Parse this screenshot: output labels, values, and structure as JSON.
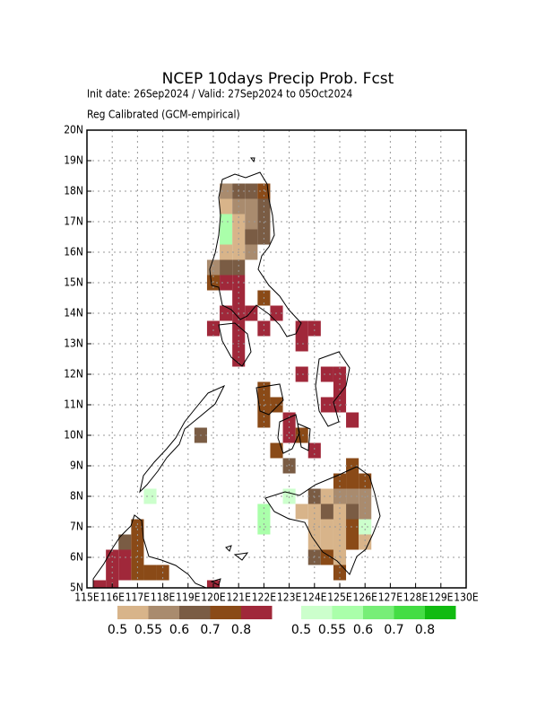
{
  "map": {
    "title": "NCEP  10days  Precip  Prob.  Fcst",
    "subtitle1": "Init date: 26Sep2024 / Valid: 27Sep2024 to 05Oct2024",
    "subtitle2": "Reg Calibrated (GCM-empirical)",
    "xlim": [
      115,
      130
    ],
    "ylim": [
      5,
      20
    ],
    "xticks": [
      {
        "value": 115,
        "label": "115E"
      },
      {
        "value": 116,
        "label": "116E"
      },
      {
        "value": 117,
        "label": "117E"
      },
      {
        "value": 118,
        "label": "118E"
      },
      {
        "value": 119,
        "label": "119E"
      },
      {
        "value": 120,
        "label": "120E"
      },
      {
        "value": 121,
        "label": "121E"
      },
      {
        "value": 122,
        "label": "122E"
      },
      {
        "value": 123,
        "label": "123E"
      },
      {
        "value": 124,
        "label": "124E"
      },
      {
        "value": 125,
        "label": "125E"
      },
      {
        "value": 126,
        "label": "126E"
      },
      {
        "value": 127,
        "label": "127E"
      },
      {
        "value": 128,
        "label": "128E"
      },
      {
        "value": 129,
        "label": "129E"
      },
      {
        "value": 130,
        "label": "130E"
      }
    ],
    "yticks": [
      {
        "value": 5,
        "label": "5N"
      },
      {
        "value": 6,
        "label": "6N"
      },
      {
        "value": 7,
        "label": "7N"
      },
      {
        "value": 8,
        "label": "8N"
      },
      {
        "value": 9,
        "label": "9N"
      },
      {
        "value": 10,
        "label": "10N"
      },
      {
        "value": 11,
        "label": "11N"
      },
      {
        "value": 12,
        "label": "12N"
      },
      {
        "value": 13,
        "label": "13N"
      },
      {
        "value": 14,
        "label": "14N"
      },
      {
        "value": 15,
        "label": "15N"
      },
      {
        "value": 16,
        "label": "16N"
      },
      {
        "value": 17,
        "label": "17N"
      },
      {
        "value": 18,
        "label": "18N"
      },
      {
        "value": 19,
        "label": "19N"
      },
      {
        "value": 20,
        "label": "20N"
      }
    ],
    "grid": true,
    "cell_size": 0.5,
    "legends": [
      {
        "colors": [
          "#d8b48a",
          "#a98b6e",
          "#7a5c44",
          "#8a4a17",
          "#a0283a"
        ],
        "labels": [
          "0.5",
          "0.55",
          "0.6",
          "0.7",
          "0.8"
        ]
      },
      {
        "colors": [
          "#ccffcc",
          "#aaffaa",
          "#77ee77",
          "#44dd44",
          "#11bb11"
        ],
        "labels": [
          "0.5",
          "0.55",
          "0.6",
          "0.7",
          "0.8"
        ]
      }
    ],
    "cells": [
      {
        "lon": 120.5,
        "lat": 18,
        "color": "#a98b6e"
      },
      {
        "lon": 121,
        "lat": 18,
        "color": "#7a5c44"
      },
      {
        "lon": 121.5,
        "lat": 18,
        "color": "#7a5c44"
      },
      {
        "lon": 122,
        "lat": 18,
        "color": "#8a4a17"
      },
      {
        "lon": 120.5,
        "lat": 17.5,
        "color": "#d8b48a"
      },
      {
        "lon": 121,
        "lat": 17.5,
        "color": "#a98b6e"
      },
      {
        "lon": 121.5,
        "lat": 17.5,
        "color": "#a98b6e"
      },
      {
        "lon": 122,
        "lat": 17.5,
        "color": "#7a5c44"
      },
      {
        "lon": 120.5,
        "lat": 17,
        "color": "#aaffaa"
      },
      {
        "lon": 121,
        "lat": 17,
        "color": "#d8b48a"
      },
      {
        "lon": 121.5,
        "lat": 17,
        "color": "#a98b6e"
      },
      {
        "lon": 122,
        "lat": 17,
        "color": "#7a5c44"
      },
      {
        "lon": 120.5,
        "lat": 16.5,
        "color": "#aaffaa"
      },
      {
        "lon": 121,
        "lat": 16.5,
        "color": "#d8b48a"
      },
      {
        "lon": 121.5,
        "lat": 16.5,
        "color": "#7a5c44"
      },
      {
        "lon": 122,
        "lat": 16.5,
        "color": "#7a5c44"
      },
      {
        "lon": 120.5,
        "lat": 16,
        "color": "#d8b48a"
      },
      {
        "lon": 121,
        "lat": 16,
        "color": "#d8b48a"
      },
      {
        "lon": 121.5,
        "lat": 16,
        "color": "#a98b6e"
      },
      {
        "lon": 120,
        "lat": 15.5,
        "color": "#a98b6e"
      },
      {
        "lon": 120.5,
        "lat": 15.5,
        "color": "#7a5c44"
      },
      {
        "lon": 121,
        "lat": 15.5,
        "color": "#7a5c44"
      },
      {
        "lon": 120,
        "lat": 15,
        "color": "#8a4a17"
      },
      {
        "lon": 120.5,
        "lat": 15,
        "color": "#a0283a"
      },
      {
        "lon": 121,
        "lat": 15,
        "color": "#a0283a"
      },
      {
        "lon": 121,
        "lat": 14.5,
        "color": "#a0283a"
      },
      {
        "lon": 122,
        "lat": 14.5,
        "color": "#8a4a17"
      },
      {
        "lon": 120.5,
        "lat": 14,
        "color": "#a0283a"
      },
      {
        "lon": 121,
        "lat": 14,
        "color": "#a0283a"
      },
      {
        "lon": 121.5,
        "lat": 14,
        "color": "#a0283a"
      },
      {
        "lon": 122.5,
        "lat": 14,
        "color": "#a0283a"
      },
      {
        "lon": 120,
        "lat": 13.5,
        "color": "#a0283a"
      },
      {
        "lon": 121,
        "lat": 13.5,
        "color": "#a0283a"
      },
      {
        "lon": 122,
        "lat": 13.5,
        "color": "#a0283a"
      },
      {
        "lon": 123.5,
        "lat": 13.5,
        "color": "#a0283a"
      },
      {
        "lon": 124,
        "lat": 13.5,
        "color": "#a0283a"
      },
      {
        "lon": 121,
        "lat": 13,
        "color": "#a0283a"
      },
      {
        "lon": 123.5,
        "lat": 13,
        "color": "#a0283a"
      },
      {
        "lon": 121,
        "lat": 12.5,
        "color": "#a0283a"
      },
      {
        "lon": 123.5,
        "lat": 12,
        "color": "#a0283a"
      },
      {
        "lon": 124.5,
        "lat": 12,
        "color": "#a0283a"
      },
      {
        "lon": 125,
        "lat": 12,
        "color": "#a0283a"
      },
      {
        "lon": 122,
        "lat": 11.5,
        "color": "#8a4a17"
      },
      {
        "lon": 125,
        "lat": 11.5,
        "color": "#a0283a"
      },
      {
        "lon": 122,
        "lat": 11,
        "color": "#8a4a17"
      },
      {
        "lon": 122.5,
        "lat": 11,
        "color": "#8a4a17"
      },
      {
        "lon": 124.5,
        "lat": 11,
        "color": "#a0283a"
      },
      {
        "lon": 125,
        "lat": 11,
        "color": "#a0283a"
      },
      {
        "lon": 122,
        "lat": 10.5,
        "color": "#8a4a17"
      },
      {
        "lon": 123,
        "lat": 10.5,
        "color": "#a0283a"
      },
      {
        "lon": 125.5,
        "lat": 10.5,
        "color": "#a0283a"
      },
      {
        "lon": 119.5,
        "lat": 10,
        "color": "#7a5c44"
      },
      {
        "lon": 123,
        "lat": 10,
        "color": "#a0283a"
      },
      {
        "lon": 123.5,
        "lat": 10,
        "color": "#8a4a17"
      },
      {
        "lon": 122.5,
        "lat": 9.5,
        "color": "#8a4a17"
      },
      {
        "lon": 124,
        "lat": 9.5,
        "color": "#a0283a"
      },
      {
        "lon": 123,
        "lat": 9,
        "color": "#7a5c44"
      },
      {
        "lon": 125.5,
        "lat": 9,
        "color": "#8a4a17"
      },
      {
        "lon": 125,
        "lat": 8.5,
        "color": "#8a4a17"
      },
      {
        "lon": 125.5,
        "lat": 8.5,
        "color": "#8a4a17"
      },
      {
        "lon": 126,
        "lat": 8.5,
        "color": "#8a4a17"
      },
      {
        "lon": 117.5,
        "lat": 8,
        "color": "#ccffcc"
      },
      {
        "lon": 123,
        "lat": 8,
        "color": "#ccffcc"
      },
      {
        "lon": 124,
        "lat": 8,
        "color": "#7a5c44"
      },
      {
        "lon": 124.5,
        "lat": 8,
        "color": "#d8b48a"
      },
      {
        "lon": 125,
        "lat": 8,
        "color": "#a98b6e"
      },
      {
        "lon": 125.5,
        "lat": 8,
        "color": "#a98b6e"
      },
      {
        "lon": 126,
        "lat": 8,
        "color": "#a98b6e"
      },
      {
        "lon": 122,
        "lat": 7.5,
        "color": "#aaffaa"
      },
      {
        "lon": 123.5,
        "lat": 7.5,
        "color": "#d8b48a"
      },
      {
        "lon": 124,
        "lat": 7.5,
        "color": "#d8b48a"
      },
      {
        "lon": 124.5,
        "lat": 7.5,
        "color": "#7a5c44"
      },
      {
        "lon": 125,
        "lat": 7.5,
        "color": "#d8b48a"
      },
      {
        "lon": 125.5,
        "lat": 7.5,
        "color": "#7a5c44"
      },
      {
        "lon": 126,
        "lat": 7.5,
        "color": "#a98b6e"
      },
      {
        "lon": 117,
        "lat": 7,
        "color": "#8a4a17"
      },
      {
        "lon": 122,
        "lat": 7,
        "color": "#aaffaa"
      },
      {
        "lon": 124,
        "lat": 7,
        "color": "#d8b48a"
      },
      {
        "lon": 124.5,
        "lat": 7,
        "color": "#d8b48a"
      },
      {
        "lon": 125,
        "lat": 7,
        "color": "#d8b48a"
      },
      {
        "lon": 125.5,
        "lat": 7,
        "color": "#8a4a17"
      },
      {
        "lon": 126,
        "lat": 7,
        "color": "#ccffcc"
      },
      {
        "lon": 116.5,
        "lat": 6.5,
        "color": "#7a5c44"
      },
      {
        "lon": 117,
        "lat": 6.5,
        "color": "#8a4a17"
      },
      {
        "lon": 124,
        "lat": 6.5,
        "color": "#d8b48a"
      },
      {
        "lon": 124.5,
        "lat": 6.5,
        "color": "#d8b48a"
      },
      {
        "lon": 125,
        "lat": 6.5,
        "color": "#d8b48a"
      },
      {
        "lon": 125.5,
        "lat": 6.5,
        "color": "#8a4a17"
      },
      {
        "lon": 126,
        "lat": 6.5,
        "color": "#d8b48a"
      },
      {
        "lon": 116,
        "lat": 6,
        "color": "#a0283a"
      },
      {
        "lon": 116.5,
        "lat": 6,
        "color": "#a0283a"
      },
      {
        "lon": 117,
        "lat": 6,
        "color": "#8a4a17"
      },
      {
        "lon": 124,
        "lat": 6,
        "color": "#7a5c44"
      },
      {
        "lon": 124.5,
        "lat": 6,
        "color": "#8a4a17"
      },
      {
        "lon": 125,
        "lat": 6,
        "color": "#d8b48a"
      },
      {
        "lon": 116,
        "lat": 5.5,
        "color": "#a0283a"
      },
      {
        "lon": 116.5,
        "lat": 5.5,
        "color": "#a0283a"
      },
      {
        "lon": 117,
        "lat": 5.5,
        "color": "#8a4a17"
      },
      {
        "lon": 117.5,
        "lat": 5.5,
        "color": "#8a4a17"
      },
      {
        "lon": 118,
        "lat": 5.5,
        "color": "#8a4a17"
      },
      {
        "lon": 125,
        "lat": 5.5,
        "color": "#8a4a17"
      },
      {
        "lon": 115.5,
        "lat": 5,
        "color": "#a0283a"
      },
      {
        "lon": 116,
        "lat": 5,
        "color": "#a0283a"
      },
      {
        "lon": 120,
        "lat": 5,
        "color": "#a0283a"
      }
    ]
  }
}
